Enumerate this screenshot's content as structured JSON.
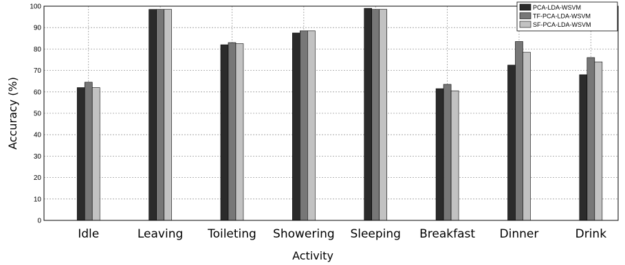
{
  "chart_data": {
    "type": "bar",
    "title": "",
    "xlabel": "Activity",
    "ylabel": "Accuracy (%)",
    "ylim": [
      0,
      100
    ],
    "yticks": [
      "0",
      "10",
      "20",
      "30",
      "40",
      "50",
      "60",
      "70",
      "80",
      "90",
      "100"
    ],
    "grid": true,
    "legend_position": "top-right",
    "categories": [
      "Idle",
      "Leaving",
      "Toileting",
      "Showering",
      "Sleeping",
      "Breakfast",
      "Dinner",
      "Drink"
    ],
    "series": [
      {
        "name": "PCA-LDA-WSVM",
        "color": "#2b2b2b",
        "values": [
          62,
          98.5,
          82,
          87.5,
          99,
          61.5,
          72.5,
          68
        ]
      },
      {
        "name": "TF-PCA-LDA-WSVM",
        "color": "#777777",
        "values": [
          64.5,
          98.5,
          83,
          88.5,
          98.5,
          63.5,
          83.5,
          76
        ]
      },
      {
        "name": "SF-PCA-LDA-WSVM",
        "color": "#c2c2c2",
        "values": [
          62,
          98.5,
          82.5,
          88.5,
          98.5,
          60.5,
          78.5,
          74
        ]
      }
    ]
  }
}
